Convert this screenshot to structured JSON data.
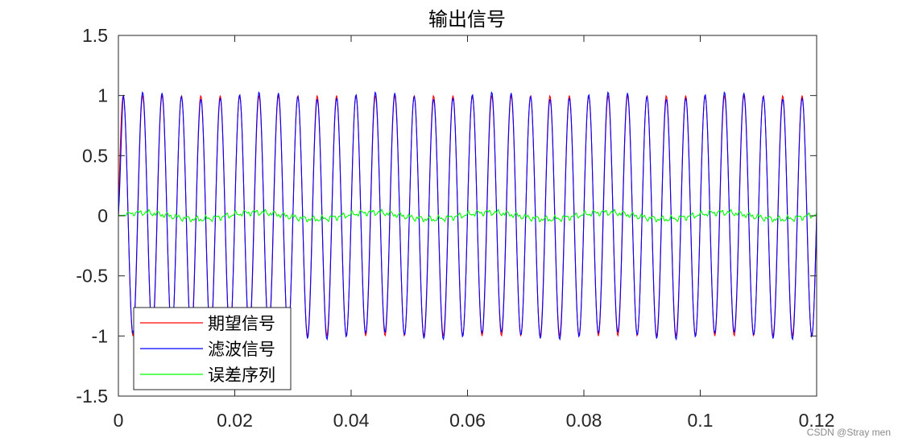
{
  "chart_data": {
    "type": "line",
    "title": "输出信号",
    "xlabel": "",
    "ylabel": "",
    "xlim": [
      0,
      0.12
    ],
    "ylim": [
      -1.5,
      1.5
    ],
    "x_ticks": [
      "0",
      "0.02",
      "0.04",
      "0.06",
      "0.08",
      "0.1",
      "0.12"
    ],
    "y_ticks": [
      "1.5",
      "1",
      "0.5",
      "0",
      "-0.5",
      "-1",
      "-1.5"
    ],
    "grid": false,
    "legend_position": "bottom-left",
    "series": [
      {
        "name": "期望信号",
        "color": "#ff0000",
        "frequency_hz": 300,
        "amplitude": 1.0,
        "sample_count": 961
      },
      {
        "name": "滤波信号",
        "color": "#0000ff",
        "frequency_hz": 300,
        "amplitude": 1.0,
        "sample_count": 961
      },
      {
        "name": "误差序列",
        "color": "#00ff00",
        "amplitude_range": [
          -0.05,
          0.06
        ]
      }
    ]
  },
  "watermark": "CSDN @Stray men"
}
